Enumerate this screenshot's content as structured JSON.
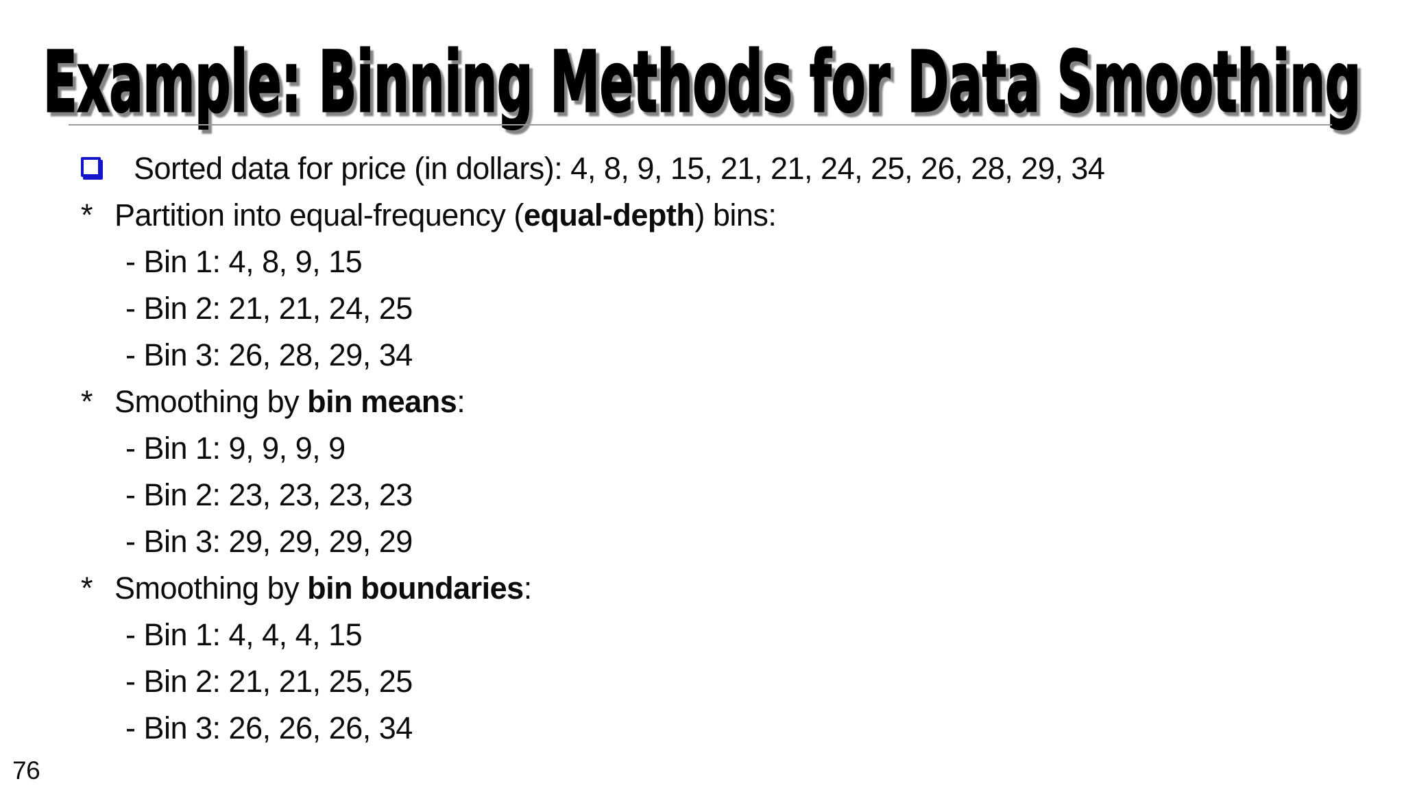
{
  "slide": {
    "title": "Example: Binning Methods for Data Smoothing",
    "page_number": "76",
    "colors": {
      "bullet_blue": "#1414CC",
      "divider_gray": "#9a9a9a",
      "text_black": "#0b0b0b"
    },
    "content": {
      "lines": [
        {
          "kind": "square-bullet",
          "text": "Sorted data for price (in dollars): 4, 8, 9, 15, 21, 21, 24, 25, 26, 28, 29, 34"
        },
        {
          "kind": "star-bullet",
          "marker": "*",
          "pre": "Partition into equal-frequency (",
          "bold": "equal-depth",
          "post": ") bins:"
        },
        {
          "kind": "sub-item",
          "text": "- Bin 1: 4, 8, 9, 15"
        },
        {
          "kind": "sub-item",
          "text": "- Bin 2: 21, 21, 24, 25"
        },
        {
          "kind": "sub-item",
          "text": "- Bin 3: 26, 28, 29, 34"
        },
        {
          "kind": "star-bullet",
          "marker": "*",
          "pre": "Smoothing by ",
          "bold": "bin means",
          "post": ":"
        },
        {
          "kind": "sub-item",
          "text": "- Bin 1: 9, 9, 9, 9"
        },
        {
          "kind": "sub-item",
          "text": "- Bin 2: 23, 23, 23, 23"
        },
        {
          "kind": "sub-item",
          "text": "- Bin 3: 29, 29, 29, 29"
        },
        {
          "kind": "star-bullet",
          "marker": "*",
          "pre": "Smoothing by ",
          "bold": "bin boundaries",
          "post": ":"
        },
        {
          "kind": "sub-item",
          "text": "- Bin 1: 4, 4, 4, 15"
        },
        {
          "kind": "sub-item",
          "text": "- Bin 2: 21, 21, 25, 25"
        },
        {
          "kind": "sub-item",
          "text": "- Bin 3: 26, 26, 26, 34"
        }
      ]
    }
  }
}
